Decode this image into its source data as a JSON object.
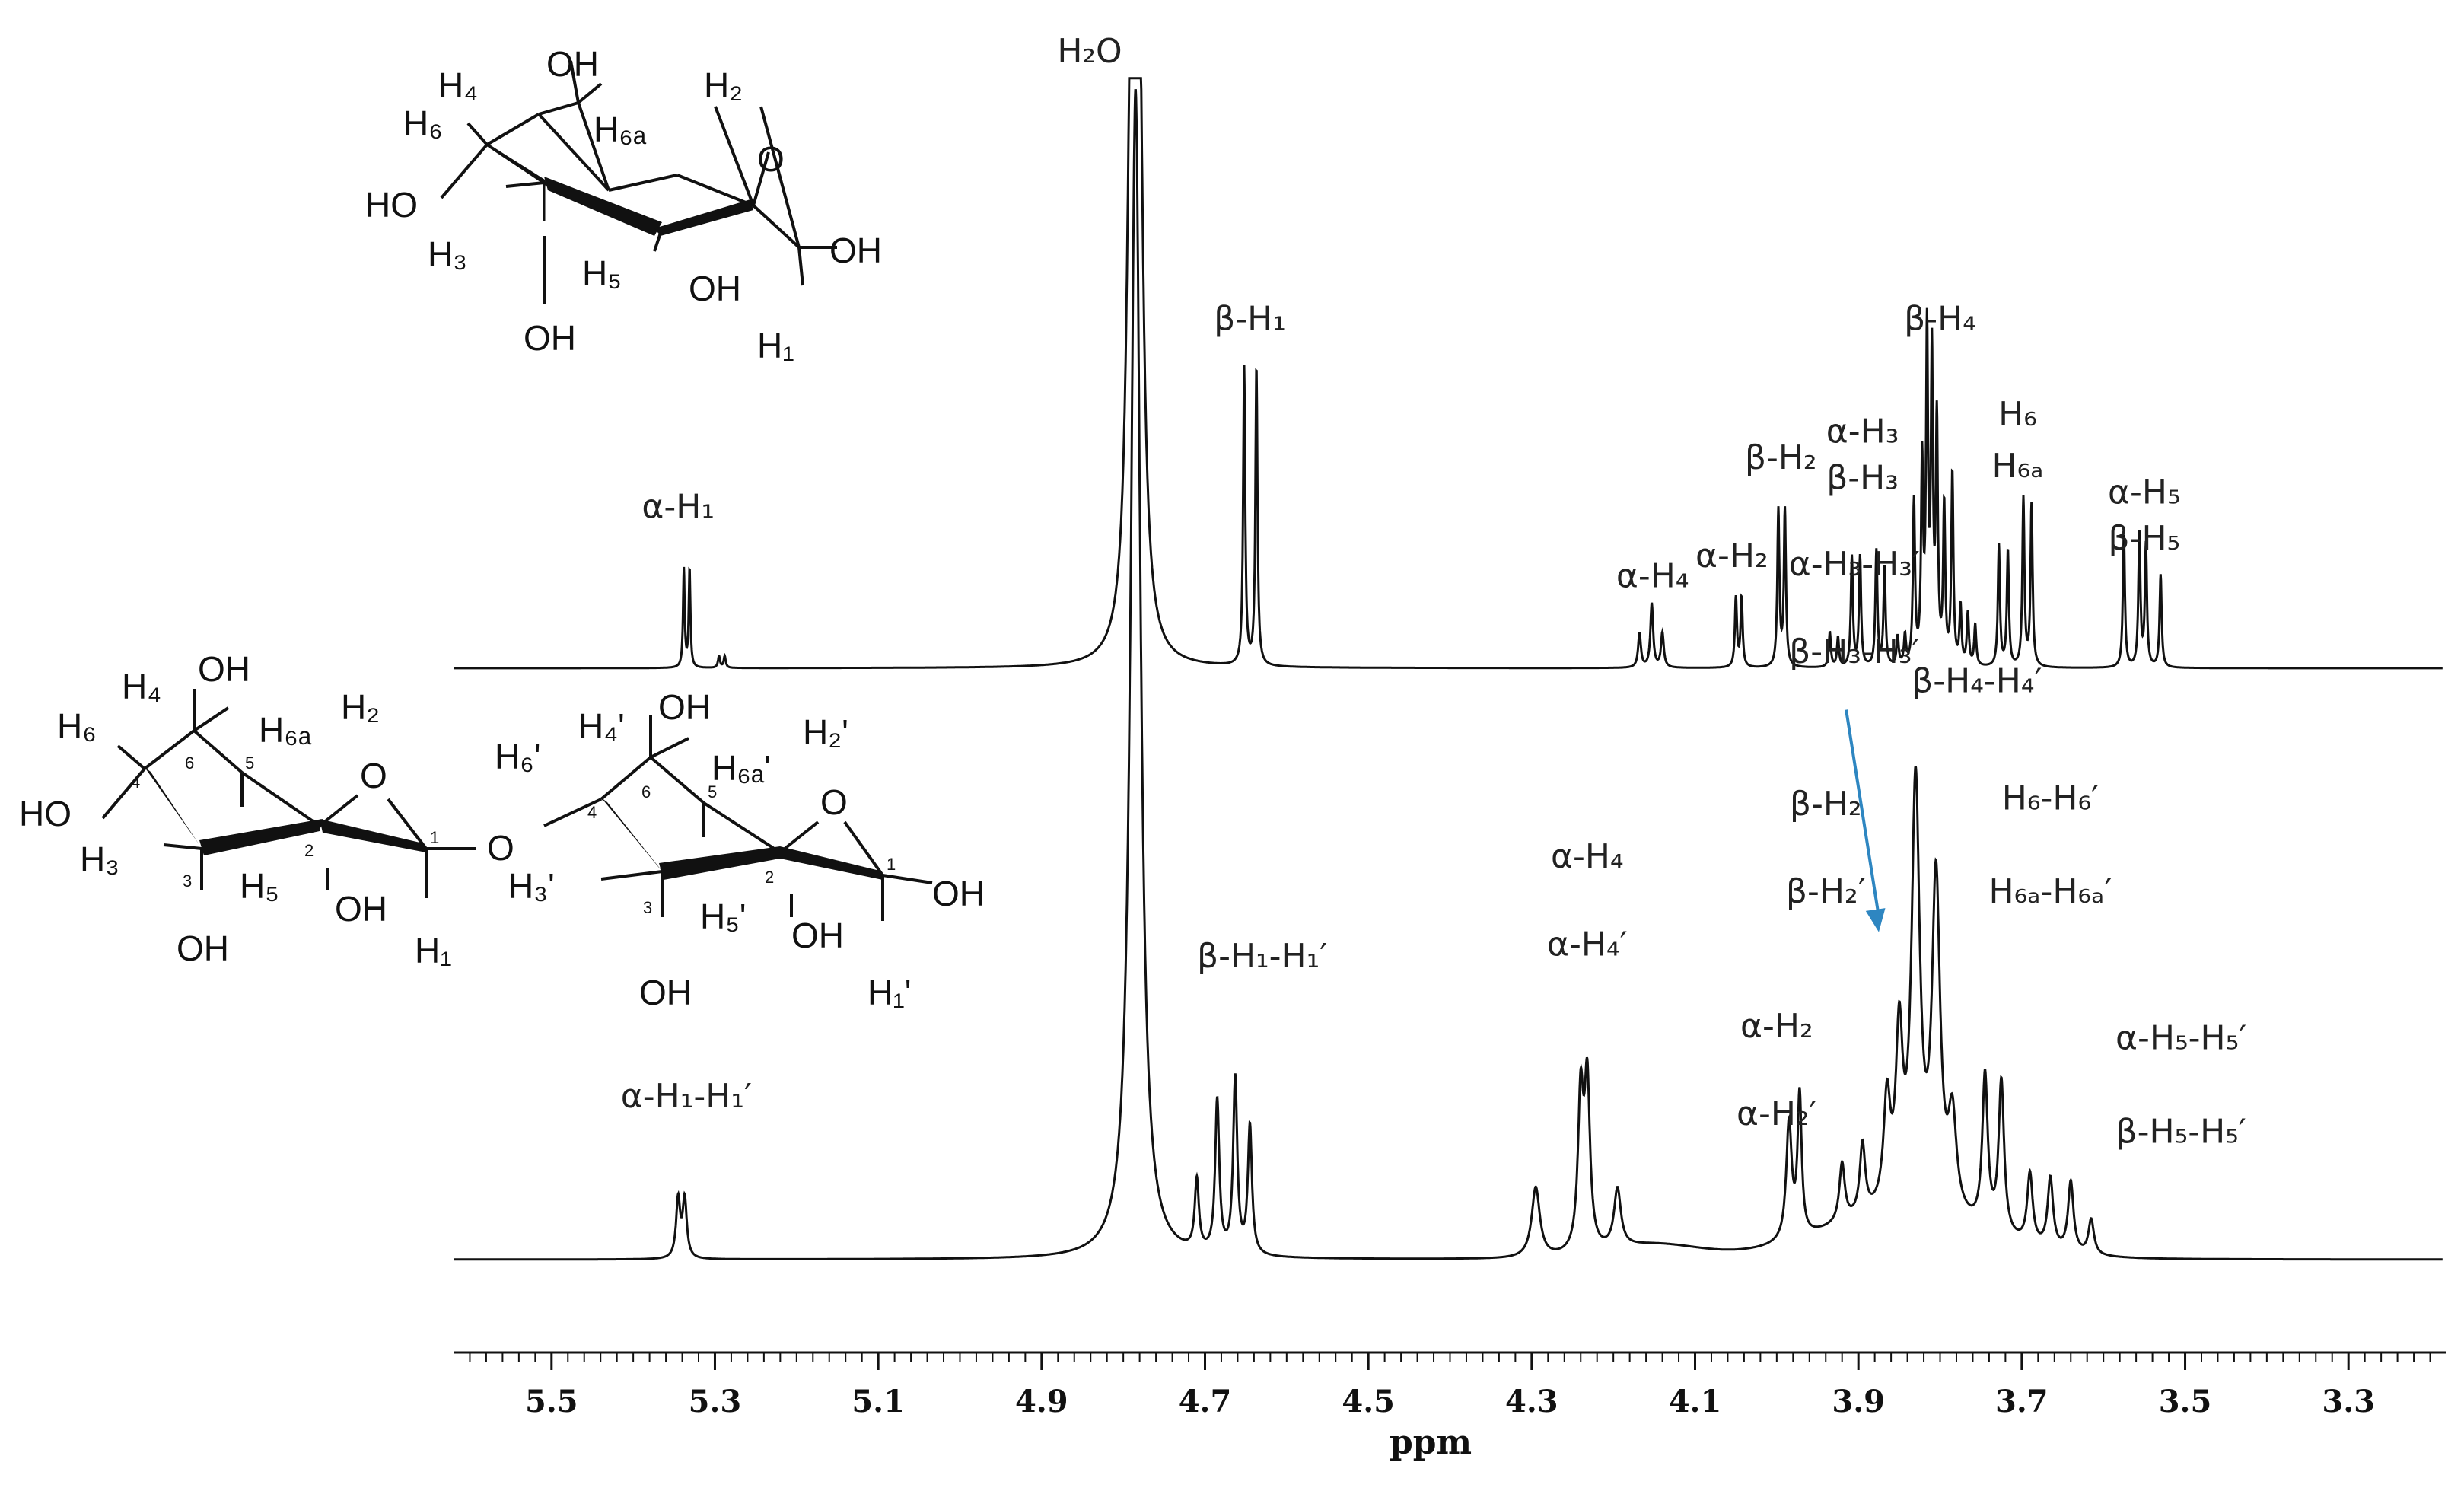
{
  "chart_data": [
    {
      "type": "line",
      "name_on_chart": "",
      "xlabel": "ppm",
      "xlim": [
        5.62,
        3.18
      ],
      "x_ticks": [
        "5.5",
        "5.3",
        "5.1",
        "4.9",
        "4.7",
        "4.5",
        "4.3",
        "4.1",
        "3.9",
        "3.7",
        "3.5",
        "3.3"
      ],
      "x_tick_values": [
        5.5,
        5.3,
        5.1,
        4.9,
        4.7,
        4.5,
        4.3,
        4.1,
        3.9,
        3.7,
        3.5,
        3.3
      ],
      "series": [
        {
          "peaks": [
            {
              "ppm": 4.79,
              "height": 1.0,
              "width": 0.006
            },
            {
              "ppm": 4.781,
              "height": 1.0,
              "width": 0.006
            },
            {
              "ppm": 4.652,
              "height": 0.515,
              "width": 0.0015
            },
            {
              "ppm": 4.637,
              "height": 0.515,
              "width": 0.0015
            },
            {
              "ppm": 5.338,
              "height": 0.17,
              "width": 0.0012
            },
            {
              "ppm": 5.331,
              "height": 0.17,
              "width": 0.0012
            },
            {
              "ppm": 5.295,
              "height": 0.02,
              "width": 0.0015
            },
            {
              "ppm": 5.288,
              "height": 0.02,
              "width": 0.0015
            },
            {
              "ppm": 4.168,
              "height": 0.06,
              "width": 0.002
            },
            {
              "ppm": 4.153,
              "height": 0.11,
              "width": 0.002
            },
            {
              "ppm": 4.14,
              "height": 0.06,
              "width": 0.002
            },
            {
              "ppm": 4.05,
              "height": 0.12,
              "width": 0.0015
            },
            {
              "ppm": 4.043,
              "height": 0.12,
              "width": 0.0015
            },
            {
              "ppm": 3.998,
              "height": 0.27,
              "width": 0.0015
            },
            {
              "ppm": 3.99,
              "height": 0.27,
              "width": 0.0015
            },
            {
              "ppm": 3.935,
              "height": 0.06,
              "width": 0.0015
            },
            {
              "ppm": 3.925,
              "height": 0.05,
              "width": 0.0015
            },
            {
              "ppm": 3.908,
              "height": 0.19,
              "width": 0.0015
            },
            {
              "ppm": 3.898,
              "height": 0.19,
              "width": 0.0015
            },
            {
              "ppm": 3.878,
              "height": 0.2,
              "width": 0.0015
            },
            {
              "ppm": 3.868,
              "height": 0.17,
              "width": 0.0015
            },
            {
              "ppm": 3.852,
              "height": 0.05,
              "width": 0.0015
            },
            {
              "ppm": 3.843,
              "height": 0.05,
              "width": 0.0015
            },
            {
              "ppm": 3.832,
              "height": 0.28,
              "width": 0.0015
            },
            {
              "ppm": 3.822,
              "height": 0.34,
              "width": 0.0015
            },
            {
              "ppm": 3.816,
              "height": 0.56,
              "width": 0.0015
            },
            {
              "ppm": 3.81,
              "height": 0.52,
              "width": 0.0015
            },
            {
              "ppm": 3.804,
              "height": 0.41,
              "width": 0.0015
            },
            {
              "ppm": 3.795,
              "height": 0.27,
              "width": 0.0015
            },
            {
              "ppm": 3.785,
              "height": 0.33,
              "width": 0.0015
            },
            {
              "ppm": 3.775,
              "height": 0.1,
              "width": 0.0015
            },
            {
              "ppm": 3.766,
              "height": 0.09,
              "width": 0.0015
            },
            {
              "ppm": 3.757,
              "height": 0.07,
              "width": 0.0015
            },
            {
              "ppm": 3.728,
              "height": 0.21,
              "width": 0.0015
            },
            {
              "ppm": 3.717,
              "height": 0.2,
              "width": 0.0015
            },
            {
              "ppm": 3.698,
              "height": 0.29,
              "width": 0.0015
            },
            {
              "ppm": 3.688,
              "height": 0.28,
              "width": 0.0015
            },
            {
              "ppm": 3.575,
              "height": 0.23,
              "width": 0.0015
            },
            {
              "ppm": 3.556,
              "height": 0.23,
              "width": 0.0015
            },
            {
              "ppm": 3.548,
              "height": 0.21,
              "width": 0.0015
            },
            {
              "ppm": 3.53,
              "height": 0.16,
              "width": 0.0015
            }
          ],
          "labels": [
            {
              "t": "α-H₁",
              "ppm": 5.345,
              "h": 0.26
            },
            {
              "t": "β-H₁",
              "ppm": 4.645,
              "h": 0.585
            },
            {
              "t": "α-H₄",
              "ppm": 4.152,
              "h": 0.14
            },
            {
              "t": "α-H₂",
              "ppm": 4.055,
              "h": 0.175
            },
            {
              "t": "β-H₂",
              "ppm": 3.995,
              "h": 0.345
            },
            {
              "t": "α-H₃",
              "ppm": 3.895,
              "h": 0.39
            },
            {
              "t": "β-H₃",
              "ppm": 3.895,
              "h": 0.31
            },
            {
              "t": "β-H₄",
              "ppm": 3.8,
              "h": 0.585
            },
            {
              "t": "H₆",
              "ppm": 3.705,
              "h": 0.42
            },
            {
              "t": "H₆ₐ",
              "ppm": 3.705,
              "h": 0.33
            },
            {
              "t": "α-H₅",
              "ppm": 3.55,
              "h": 0.285
            },
            {
              "t": "β-H₅",
              "ppm": 3.55,
              "h": 0.205
            }
          ]
        },
        {
          "peaks": [
            {
              "ppm": 4.785,
              "height": 1.0,
              "width": 0.007
            },
            {
              "ppm": 5.345,
              "height": 0.05,
              "width": 0.003
            },
            {
              "ppm": 5.337,
              "height": 0.05,
              "width": 0.003
            },
            {
              "ppm": 4.71,
              "height": 0.06,
              "width": 0.003
            },
            {
              "ppm": 4.685,
              "height": 0.13,
              "width": 0.003
            },
            {
              "ppm": 4.663,
              "height": 0.15,
              "width": 0.003
            },
            {
              "ppm": 4.645,
              "height": 0.11,
              "width": 0.003
            },
            {
              "ppm": 4.295,
              "height": 0.06,
              "width": 0.006
            },
            {
              "ppm": 4.24,
              "height": 0.13,
              "width": 0.004
            },
            {
              "ppm": 4.232,
              "height": 0.14,
              "width": 0.004
            },
            {
              "ppm": 4.195,
              "height": 0.05,
              "width": 0.005
            },
            {
              "ppm": 3.985,
              "height": 0.1,
              "width": 0.004
            },
            {
              "ppm": 3.972,
              "height": 0.12,
              "width": 0.003
            },
            {
              "ppm": 3.92,
              "height": 0.05,
              "width": 0.004
            },
            {
              "ppm": 3.895,
              "height": 0.06,
              "width": 0.004
            },
            {
              "ppm": 3.865,
              "height": 0.09,
              "width": 0.005
            },
            {
              "ppm": 3.85,
              "height": 0.14,
              "width": 0.005
            },
            {
              "ppm": 3.83,
              "height": 0.36,
              "width": 0.006
            },
            {
              "ppm": 3.805,
              "height": 0.28,
              "width": 0.006
            },
            {
              "ppm": 3.785,
              "height": 0.08,
              "width": 0.006
            },
            {
              "ppm": 3.745,
              "height": 0.13,
              "width": 0.004
            },
            {
              "ppm": 3.725,
              "height": 0.13,
              "width": 0.004
            },
            {
              "ppm": 3.69,
              "height": 0.06,
              "width": 0.004
            },
            {
              "ppm": 3.665,
              "height": 0.06,
              "width": 0.004
            },
            {
              "ppm": 3.64,
              "height": 0.06,
              "width": 0.004
            },
            {
              "ppm": 3.615,
              "height": 0.03,
              "width": 0.004
            }
          ],
          "labels": [
            {
              "t": "α-H₁-H₁′",
              "ppm": 5.335,
              "h": 0.13
            },
            {
              "t": "β-H₁-H₁′",
              "ppm": 4.63,
              "h": 0.25
            },
            {
              "t": "α-H₄",
              "ppm": 4.232,
              "h": 0.335
            },
            {
              "t": "α-H₄′",
              "ppm": 4.232,
              "h": 0.26
            },
            {
              "t": "α-H₂",
              "ppm": 4.0,
              "h": 0.19
            },
            {
              "t": "α-H₂′",
              "ppm": 4.0,
              "h": 0.115
            },
            {
              "t": "β-H₂",
              "ppm": 3.94,
              "h": 0.38
            },
            {
              "t": "β-H₂′",
              "ppm": 3.94,
              "h": 0.305
            },
            {
              "t": "α-H₃-H₃′",
              "ppm": 3.905,
              "h": 0.585
            },
            {
              "t": "β-H₃-H₃′",
              "ppm": 3.905,
              "h": 0.51
            },
            {
              "t": "β-H₄-H₄′",
              "ppm": 3.755,
              "h": 0.485
            },
            {
              "t": "H₆-H₆′",
              "ppm": 3.665,
              "h": 0.385
            },
            {
              "t": "H₆ₐ-H₆ₐ′",
              "ppm": 3.665,
              "h": 0.305
            },
            {
              "t": "α-H₅-H₅′",
              "ppm": 3.505,
              "h": 0.18
            },
            {
              "t": "β-H₅-H₅′",
              "ppm": 3.505,
              "h": 0.1
            }
          ]
        }
      ],
      "top_annotation": "H₂O",
      "arrow": {
        "from_ppm": 3.915,
        "from_h": 0.47,
        "to_ppm": 3.875,
        "to_h": 0.28,
        "color": "#2e86c1"
      },
      "grid": false,
      "legend": "none"
    }
  ],
  "structures": [
    {
      "labels": [
        "OH",
        "H₄",
        "H₂",
        "H₆",
        "H₆ₐ",
        "O",
        "HO",
        "OH",
        "H₃",
        "H₅",
        "OH",
        "OH",
        "H₁"
      ]
    },
    {
      "labels": [
        "OH",
        "H₄",
        "H₆",
        "H₆ₐ",
        "H₂",
        "O",
        "HO",
        "O",
        "H₃",
        "H₅",
        "OH",
        "OH",
        "H₁",
        "OH",
        "H₄'",
        "H₆'",
        "H₆ₐ'",
        "H₂'",
        "O",
        "H₃'",
        "H₅'",
        "OH",
        "OH",
        "OH",
        "H₁'"
      ],
      "ring_numbers": [
        "6",
        "5",
        "4",
        "3",
        "2",
        "1",
        "6",
        "5",
        "4",
        "3",
        "2",
        "1"
      ]
    }
  ]
}
